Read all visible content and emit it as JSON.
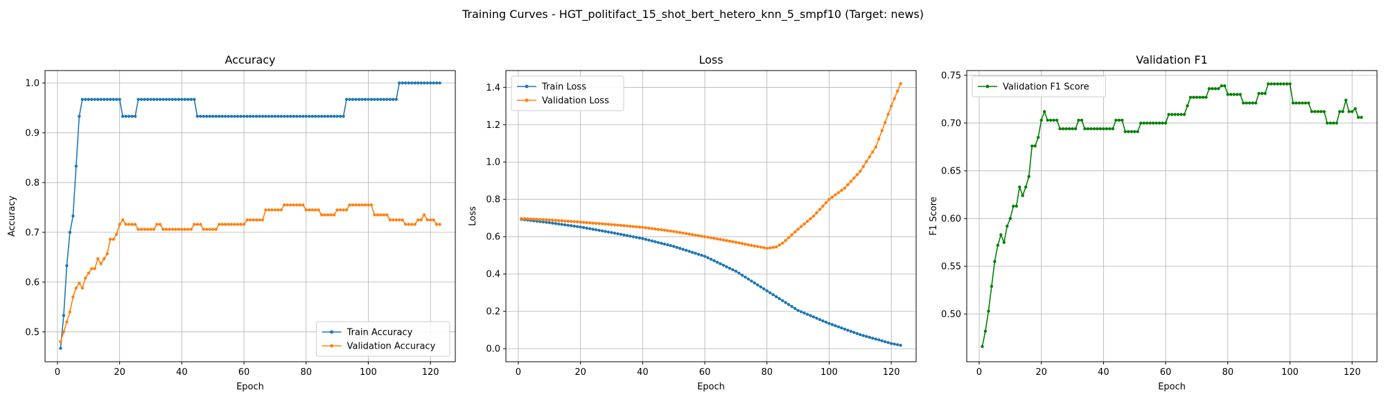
{
  "figure": {
    "suptitle": "Training Curves - HGT_politifact_15_shot_bert_hetero_knn_5_smpf10 (Target: news)"
  },
  "colors": {
    "train": "#1f77b4",
    "validation": "#ff7f0e",
    "f1": "#008000",
    "grid": "#b0b0b0"
  },
  "chart_data": [
    {
      "type": "line",
      "title": "Accuracy",
      "xlabel": "Epoch",
      "ylabel": "Accuracy",
      "xlim": [
        -4,
        128
      ],
      "ylim": [
        0.44,
        1.025
      ],
      "xticks": [
        0,
        20,
        40,
        60,
        80,
        100,
        120
      ],
      "yticks": [
        0.5,
        0.6,
        0.7,
        0.8,
        0.9,
        1.0
      ],
      "ytick_labels": [
        "0.5",
        "0.6",
        "0.7",
        "0.8",
        "0.9",
        "1.0"
      ],
      "grid": true,
      "legend": "lower right",
      "series": [
        {
          "name": "Train Accuracy",
          "color": "#1f77b4",
          "segments": [
            [
              1,
              0.467
            ],
            [
              2,
              0.533
            ],
            [
              3,
              0.633
            ],
            [
              4,
              0.7
            ],
            [
              5,
              0.733
            ],
            [
              6,
              0.833
            ],
            [
              7,
              0.933
            ],
            [
              8,
              0.967
            ],
            [
              [
                8,
                20
              ],
              0.967
            ],
            [
              [
                21,
                25
              ],
              0.933
            ],
            [
              [
                26,
                44
              ],
              0.967
            ],
            [
              [
                45,
                92
              ],
              0.933
            ],
            [
              [
                93,
                109
              ],
              0.967
            ],
            [
              [
                110,
                123
              ],
              1.0
            ]
          ]
        },
        {
          "name": "Validation Accuracy",
          "color": "#ff7f0e",
          "segments": [
            [
              1,
              0.48
            ],
            [
              2,
              0.5
            ],
            [
              3,
              0.52
            ],
            [
              4,
              0.54
            ],
            [
              5,
              0.57
            ],
            [
              6,
              0.588
            ],
            [
              7,
              0.598
            ],
            [
              8,
              0.588
            ],
            [
              9,
              0.608
            ],
            [
              10,
              0.618
            ],
            [
              11,
              0.627
            ],
            [
              12,
              0.627
            ],
            [
              13,
              0.647
            ],
            [
              14,
              0.637
            ],
            [
              15,
              0.647
            ],
            [
              16,
              0.657
            ],
            [
              17,
              0.686
            ],
            [
              18,
              0.686
            ],
            [
              19,
              0.696
            ],
            [
              20,
              0.716
            ],
            [
              21,
              0.725
            ],
            [
              [
                22,
                25
              ],
              0.716
            ],
            [
              [
                26,
                31
              ],
              0.706
            ],
            [
              [
                32,
                33
              ],
              0.716
            ],
            [
              [
                34,
                43
              ],
              0.706
            ],
            [
              [
                44,
                46
              ],
              0.716
            ],
            [
              [
                47,
                51
              ],
              0.706
            ],
            [
              [
                52,
                60
              ],
              0.716
            ],
            [
              [
                61,
                66
              ],
              0.725
            ],
            [
              [
                67,
                72
              ],
              0.745
            ],
            [
              [
                73,
                79
              ],
              0.755
            ],
            [
              [
                80,
                84
              ],
              0.745
            ],
            [
              [
                85,
                89
              ],
              0.735
            ],
            [
              [
                90,
                93
              ],
              0.745
            ],
            [
              [
                94,
                101
              ],
              0.755
            ],
            [
              [
                102,
                106
              ],
              0.735
            ],
            [
              [
                107,
                111
              ],
              0.725
            ],
            [
              [
                112,
                115
              ],
              0.716
            ],
            [
              [
                116,
                117
              ],
              0.725
            ],
            [
              118,
              0.735
            ],
            [
              [
                119,
                121
              ],
              0.725
            ],
            [
              [
                122,
                123
              ],
              0.716
            ]
          ]
        }
      ]
    },
    {
      "type": "line",
      "title": "Loss",
      "xlabel": "Epoch",
      "ylabel": "Loss",
      "xlim": [
        -4,
        128
      ],
      "ylim": [
        -0.07,
        1.49
      ],
      "xticks": [
        0,
        20,
        40,
        60,
        80,
        100,
        120
      ],
      "yticks": [
        0.0,
        0.2,
        0.4,
        0.6,
        0.8,
        1.0,
        1.2,
        1.4
      ],
      "ytick_labels": [
        "0.0",
        "0.2",
        "0.4",
        "0.6",
        "0.8",
        "1.0",
        "1.2",
        "1.4"
      ],
      "grid": true,
      "legend": "upper left",
      "series": [
        {
          "name": "Train Loss",
          "color": "#1f77b4",
          "keypoints": [
            [
              1,
              0.693
            ],
            [
              10,
              0.675
            ],
            [
              20,
              0.652
            ],
            [
              30,
              0.622
            ],
            [
              40,
              0.59
            ],
            [
              50,
              0.548
            ],
            [
              60,
              0.495
            ],
            [
              70,
              0.415
            ],
            [
              80,
              0.31
            ],
            [
              90,
              0.205
            ],
            [
              100,
              0.135
            ],
            [
              110,
              0.075
            ],
            [
              120,
              0.028
            ],
            [
              123,
              0.018
            ]
          ]
        },
        {
          "name": "Validation Loss",
          "color": "#ff7f0e",
          "keypoints": [
            [
              1,
              0.697
            ],
            [
              10,
              0.69
            ],
            [
              20,
              0.678
            ],
            [
              30,
              0.665
            ],
            [
              40,
              0.65
            ],
            [
              50,
              0.628
            ],
            [
              60,
              0.6
            ],
            [
              70,
              0.57
            ],
            [
              75,
              0.553
            ],
            [
              80,
              0.538
            ],
            [
              83,
              0.545
            ],
            [
              85,
              0.565
            ],
            [
              90,
              0.64
            ],
            [
              95,
              0.71
            ],
            [
              100,
              0.8
            ],
            [
              105,
              0.86
            ],
            [
              110,
              0.95
            ],
            [
              115,
              1.08
            ],
            [
              120,
              1.3
            ],
            [
              123,
              1.42
            ]
          ]
        }
      ]
    },
    {
      "type": "line",
      "title": "Validation F1",
      "xlabel": "Epoch",
      "ylabel": "F1 Score",
      "xlim": [
        -4,
        128
      ],
      "ylim": [
        0.45,
        0.755
      ],
      "xticks": [
        0,
        20,
        40,
        60,
        80,
        100,
        120
      ],
      "yticks": [
        0.5,
        0.55,
        0.6,
        0.65,
        0.7,
        0.75
      ],
      "ytick_labels": [
        "0.50",
        "0.55",
        "0.60",
        "0.65",
        "0.70",
        "0.75"
      ],
      "grid": true,
      "legend": "upper left",
      "series": [
        {
          "name": "Validation F1 Score",
          "color": "#008000",
          "segments": [
            [
              1,
              0.466
            ],
            [
              2,
              0.482
            ],
            [
              3,
              0.503
            ],
            [
              4,
              0.529
            ],
            [
              5,
              0.555
            ],
            [
              6,
              0.572
            ],
            [
              7,
              0.583
            ],
            [
              8,
              0.575
            ],
            [
              9,
              0.592
            ],
            [
              10,
              0.6
            ],
            [
              11,
              0.613
            ],
            [
              12,
              0.613
            ],
            [
              13,
              0.633
            ],
            [
              14,
              0.624
            ],
            [
              15,
              0.633
            ],
            [
              16,
              0.644
            ],
            [
              17,
              0.676
            ],
            [
              18,
              0.676
            ],
            [
              19,
              0.685
            ],
            [
              20,
              0.703
            ],
            [
              21,
              0.712
            ],
            [
              [
                22,
                25
              ],
              0.703
            ],
            [
              [
                26,
                31
              ],
              0.694
            ],
            [
              [
                32,
                33
              ],
              0.703
            ],
            [
              [
                34,
                43
              ],
              0.694
            ],
            [
              [
                44,
                46
              ],
              0.703
            ],
            [
              [
                47,
                51
              ],
              0.691
            ],
            [
              [
                52,
                60
              ],
              0.7
            ],
            [
              [
                61,
                66
              ],
              0.709
            ],
            [
              67,
              0.718
            ],
            [
              [
                68,
                73
              ],
              0.727
            ],
            [
              [
                74,
                77
              ],
              0.736
            ],
            [
              [
                78,
                79
              ],
              0.739
            ],
            [
              [
                80,
                84
              ],
              0.73
            ],
            [
              [
                85,
                89
              ],
              0.721
            ],
            [
              [
                90,
                92
              ],
              0.731
            ],
            [
              [
                93,
                100
              ],
              0.741
            ],
            [
              [
                101,
                106
              ],
              0.721
            ],
            [
              [
                107,
                111
              ],
              0.712
            ],
            [
              [
                112,
                115
              ],
              0.7
            ],
            [
              [
                116,
                117
              ],
              0.712
            ],
            [
              118,
              0.724
            ],
            [
              [
                119,
                120
              ],
              0.712
            ],
            [
              121,
              0.715
            ],
            [
              [
                122,
                123
              ],
              0.706
            ]
          ]
        }
      ]
    }
  ]
}
